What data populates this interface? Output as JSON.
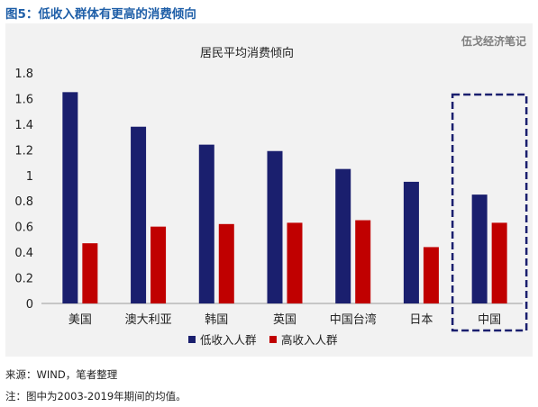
{
  "figure_title": "图5：低收入群体有更高的消费倾向",
  "watermark": "伍戈经济笔记",
  "notes": {
    "source": "来源：WIND，笔者整理",
    "note": "注：图中为2003-2019年期间的均值。"
  },
  "colors": {
    "low_income": "#1a1f6e",
    "high_income": "#c00000",
    "highlight_box": "#1a1f6e",
    "title_blue": "#1f5fa8"
  },
  "chart_data": {
    "type": "bar",
    "title": "居民平均消费倾向",
    "categories": [
      "美国",
      "澳大利亚",
      "韩国",
      "英国",
      "中国台湾",
      "日本",
      "中国"
    ],
    "series": [
      {
        "name": "低收入人群",
        "values": [
          1.65,
          1.38,
          1.24,
          1.19,
          1.05,
          0.95,
          0.85
        ]
      },
      {
        "name": "高收入人群",
        "values": [
          0.47,
          0.6,
          0.62,
          0.63,
          0.65,
          0.44,
          0.63
        ]
      }
    ],
    "ylim": [
      0,
      1.8
    ],
    "yticks": [
      "0",
      "0.2",
      "0.4",
      "0.6",
      "0.8",
      "1",
      "1.2",
      "1.4",
      "1.6",
      "1.8"
    ],
    "xlabel": "",
    "ylabel": "",
    "grid": false,
    "legend": "bottom-center",
    "highlighted_category": "中国"
  }
}
